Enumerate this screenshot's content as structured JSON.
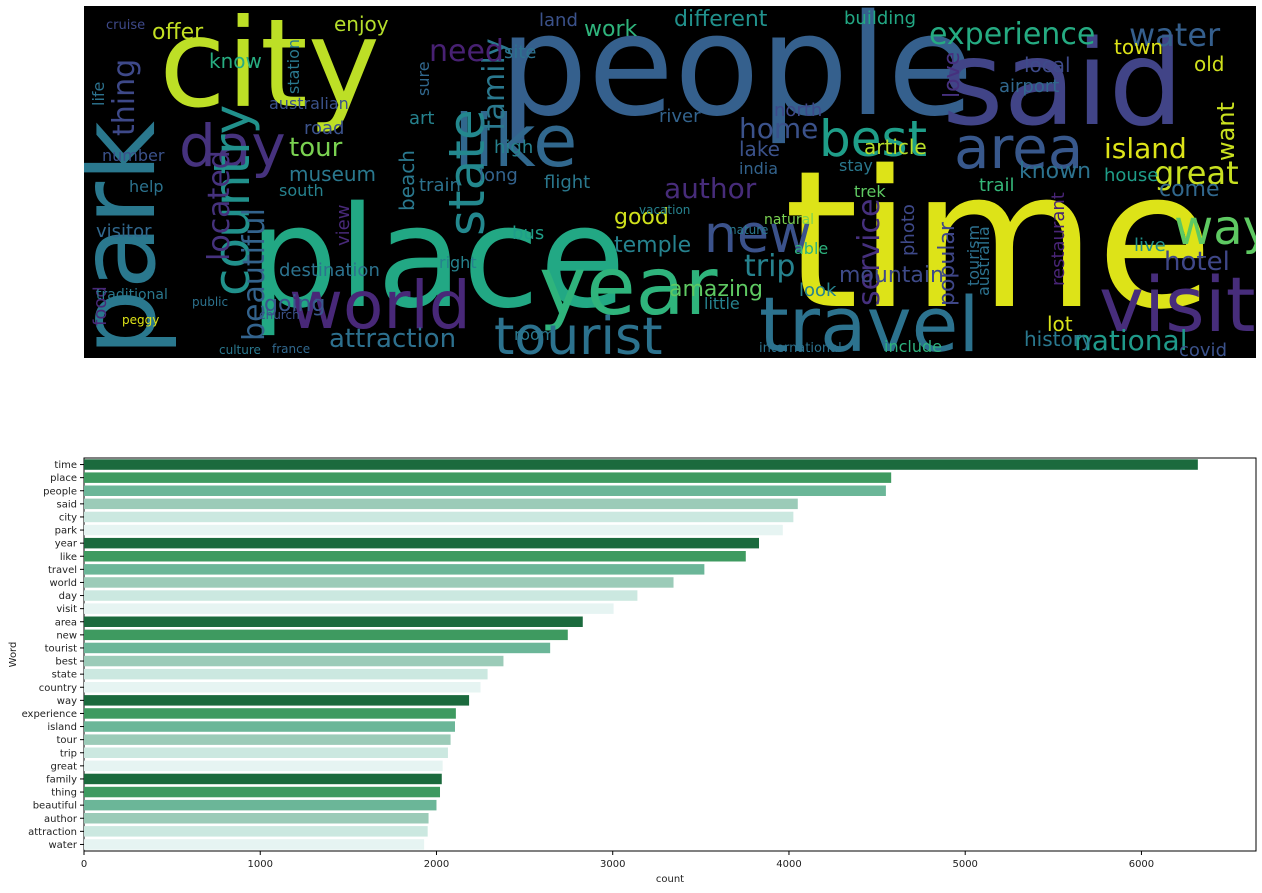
{
  "wordcloud": {
    "background": "#000000",
    "words": [
      {
        "text": "time",
        "color": "#dde318"
      },
      {
        "text": "place",
        "color": "#22a884"
      },
      {
        "text": "people",
        "color": "#35608d"
      },
      {
        "text": "said",
        "color": "#414487"
      },
      {
        "text": "city",
        "color": "#bddf26"
      },
      {
        "text": "park",
        "color": "#2a788e"
      },
      {
        "text": "year",
        "color": "#2fb47c"
      },
      {
        "text": "like",
        "color": "#31688e"
      },
      {
        "text": "travel",
        "color": "#2c728e"
      },
      {
        "text": "world",
        "color": "#482878"
      },
      {
        "text": "day",
        "color": "#46327e"
      },
      {
        "text": "visit",
        "color": "#472d7b"
      },
      {
        "text": "area",
        "color": "#38588c"
      },
      {
        "text": "new",
        "color": "#3b528b"
      },
      {
        "text": "tourist",
        "color": "#2c728e"
      },
      {
        "text": "best",
        "color": "#1f9e89"
      },
      {
        "text": "state",
        "color": "#23888e"
      },
      {
        "text": "country",
        "color": "#21918c"
      },
      {
        "text": "way",
        "color": "#5ec962"
      },
      {
        "text": "experience",
        "color": "#25ab82"
      },
      {
        "text": "island",
        "color": "#dde318"
      },
      {
        "text": "tour",
        "color": "#7ad151"
      },
      {
        "text": "trip",
        "color": "#26828e"
      },
      {
        "text": "great",
        "color": "#c8e020"
      },
      {
        "text": "family",
        "color": "#2a788e"
      },
      {
        "text": "thing",
        "color": "#3e4989"
      },
      {
        "text": "beautiful",
        "color": "#33638d"
      },
      {
        "text": "author",
        "color": "#472c7a"
      },
      {
        "text": "attraction",
        "color": "#2d708e"
      },
      {
        "text": "water",
        "color": "#355f8d"
      },
      {
        "text": "national",
        "color": "#1f9a8a"
      },
      {
        "text": "history",
        "color": "#2a788e"
      },
      {
        "text": "hotel",
        "color": "#3f4788"
      },
      {
        "text": "home",
        "color": "#3b528b"
      },
      {
        "text": "need",
        "color": "#482173"
      },
      {
        "text": "service",
        "color": "#46307e"
      },
      {
        "text": "mountain",
        "color": "#3e4a89"
      },
      {
        "text": "located",
        "color": "#46327e"
      },
      {
        "text": "amazing",
        "color": "#5ec962"
      },
      {
        "text": "temple",
        "color": "#26828e"
      },
      {
        "text": "destination",
        "color": "#2c728e"
      },
      {
        "text": "going",
        "color": "#39568c"
      },
      {
        "text": "museum",
        "color": "#2a788e"
      },
      {
        "text": "building",
        "color": "#22a884"
      },
      {
        "text": "enjoy",
        "color": "#b5de2b"
      },
      {
        "text": "offer",
        "color": "#c2df23"
      },
      {
        "text": "know",
        "color": "#27ad81"
      },
      {
        "text": "lake",
        "color": "#3b528b"
      },
      {
        "text": "river",
        "color": "#33638d"
      },
      {
        "text": "north",
        "color": "#3e4989"
      },
      {
        "text": "article",
        "color": "#b8de29"
      },
      {
        "text": "known",
        "color": "#2c728e"
      },
      {
        "text": "house",
        "color": "#1f9e89"
      },
      {
        "text": "come",
        "color": "#31688e"
      },
      {
        "text": "want",
        "color": "#cae11f"
      },
      {
        "text": "popular",
        "color": "#3f4788"
      },
      {
        "text": "tourism",
        "color": "#2d708e"
      },
      {
        "text": "trail",
        "color": "#35b779"
      },
      {
        "text": "live",
        "color": "#21918c"
      },
      {
        "text": "look",
        "color": "#26828e"
      },
      {
        "text": "lot",
        "color": "#d8e219"
      },
      {
        "text": "include",
        "color": "#2db27d"
      },
      {
        "text": "covid",
        "color": "#3b528b"
      },
      {
        "text": "good",
        "color": "#d0e11c"
      },
      {
        "text": "road",
        "color": "#3b528b"
      },
      {
        "text": "art",
        "color": "#26828e"
      },
      {
        "text": "beach",
        "color": "#2a788e"
      },
      {
        "text": "view",
        "color": "#482979"
      },
      {
        "text": "food",
        "color": "#482878"
      },
      {
        "text": "visitor",
        "color": "#31688e"
      },
      {
        "text": "train",
        "color": "#2c728e"
      },
      {
        "text": "long",
        "color": "#33638d"
      },
      {
        "text": "flight",
        "color": "#2a788e"
      },
      {
        "text": "bus",
        "color": "#1f9e89"
      },
      {
        "text": "high",
        "color": "#26828e"
      },
      {
        "text": "site",
        "color": "#2c728e"
      },
      {
        "text": "land",
        "color": "#3b528b"
      },
      {
        "text": "work",
        "color": "#2fb47c"
      },
      {
        "text": "different",
        "color": "#21918c"
      },
      {
        "text": "local",
        "color": "#3e4a89"
      },
      {
        "text": "town",
        "color": "#dde318"
      },
      {
        "text": "airport",
        "color": "#31688e"
      },
      {
        "text": "love",
        "color": "#46307e"
      },
      {
        "text": "old",
        "color": "#d0e11c"
      },
      {
        "text": "india",
        "color": "#33638d"
      },
      {
        "text": "stay",
        "color": "#2a788e"
      },
      {
        "text": "photo",
        "color": "#3e4989"
      },
      {
        "text": "australia",
        "color": "#2c728e"
      },
      {
        "text": "restaurant",
        "color": "#482475"
      },
      {
        "text": "australian",
        "color": "#3b528b"
      },
      {
        "text": "station",
        "color": "#2a788e"
      },
      {
        "text": "south",
        "color": "#26828e"
      },
      {
        "text": "help",
        "color": "#2c728e"
      },
      {
        "text": "number",
        "color": "#3b528b"
      },
      {
        "text": "traditional",
        "color": "#2a788e"
      },
      {
        "text": "right",
        "color": "#26828e"
      },
      {
        "text": "able",
        "color": "#2db27d"
      },
      {
        "text": "room",
        "color": "#2a788e"
      },
      {
        "text": "little",
        "color": "#26828e"
      },
      {
        "text": "sure",
        "color": "#31688e"
      },
      {
        "text": "life",
        "color": "#2c728e"
      },
      {
        "text": "cruise",
        "color": "#3e4989"
      },
      {
        "text": "peggy",
        "color": "#dde318"
      },
      {
        "text": "international",
        "color": "#2c728e"
      },
      {
        "text": "trek",
        "color": "#5ec962"
      },
      {
        "text": "natural",
        "color": "#7ad151"
      },
      {
        "text": "france",
        "color": "#31688e"
      },
      {
        "text": "culture",
        "color": "#2a788e"
      },
      {
        "text": "church",
        "color": "#3b528b"
      },
      {
        "text": "public",
        "color": "#2c728e"
      },
      {
        "text": "vacation",
        "color": "#26828e"
      },
      {
        "text": "nature",
        "color": "#2a788e"
      }
    ]
  },
  "chart_data": {
    "type": "bar",
    "orientation": "horizontal",
    "categories": [
      "time",
      "place",
      "people",
      "said",
      "city",
      "park",
      "year",
      "like",
      "travel",
      "world",
      "day",
      "visit",
      "area",
      "new",
      "tourist",
      "best",
      "state",
      "country",
      "way",
      "experience",
      "island",
      "tour",
      "trip",
      "great",
      "family",
      "thing",
      "beautiful",
      "author",
      "attraction",
      "water"
    ],
    "values": [
      6320,
      4580,
      4550,
      4050,
      4025,
      3965,
      3830,
      3755,
      3520,
      3345,
      3140,
      3005,
      2830,
      2745,
      2645,
      2380,
      2290,
      2250,
      2185,
      2110,
      2105,
      2080,
      2065,
      2035,
      2030,
      2020,
      2000,
      1955,
      1950,
      1930
    ],
    "colors": [
      "#1b6a3d",
      "#3e9a60",
      "#6bb698",
      "#9bcbb8",
      "#cbe8e0",
      "#e6f4f2"
    ],
    "xlabel": "count",
    "ylabel": "Word",
    "xlim": [
      0,
      6650
    ],
    "xticks": [
      0,
      1000,
      2000,
      3000,
      4000,
      5000,
      6000
    ],
    "grid": false
  }
}
